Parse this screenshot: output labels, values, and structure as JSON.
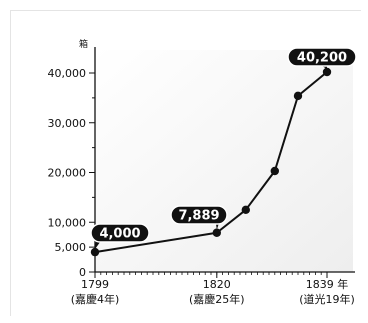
{
  "chart_data": {
    "type": "line",
    "ylabel": "箱",
    "ylim": [
      0,
      45000
    ],
    "y_ticks": [
      0,
      5000,
      10000,
      20000,
      30000,
      40000
    ],
    "y_tick_labels": [
      "0",
      "5,000",
      "10,000",
      "20,000",
      "30,000",
      "40,000"
    ],
    "x_range": [
      1799,
      1839
    ],
    "x_ticks": [
      {
        "x": 1799,
        "label": "1799",
        "sub": "(嘉慶4年)"
      },
      {
        "x": 1820,
        "label": "1820",
        "sub": "(嘉慶25年)"
      },
      {
        "x": 1839,
        "label": "1839 年",
        "sub": "(道光19年)"
      }
    ],
    "series": [
      {
        "x": [
          1799,
          1820,
          1825,
          1830,
          1834,
          1839
        ],
        "values": [
          4000,
          7889,
          12500,
          20300,
          35400,
          40200
        ]
      }
    ],
    "annotations": [
      {
        "x": 1799,
        "y": 4000,
        "text": "4,000"
      },
      {
        "x": 1820,
        "y": 7889,
        "text": "7,889"
      },
      {
        "x": 1839,
        "y": 40200,
        "text": "40,200"
      }
    ],
    "grid": false,
    "colors": {
      "line": "#111111",
      "callout": "#111111",
      "callout_text": "#ffffff"
    }
  }
}
